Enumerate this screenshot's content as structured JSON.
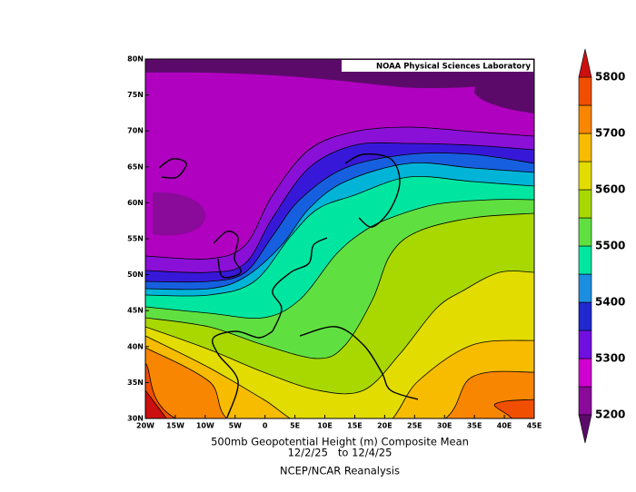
{
  "map": {
    "credit": "NOAA Physical Sciences Laboratory",
    "lat_labels": [
      "30N",
      "35N",
      "40N",
      "45N",
      "50N",
      "55N",
      "60N",
      "65N",
      "70N",
      "75N",
      "80N"
    ],
    "lon_labels": [
      "20W",
      "15W",
      "10W",
      "5W",
      "0",
      "5E",
      "10E",
      "15E",
      "20E",
      "25E",
      "30E",
      "35E",
      "40E",
      "45E"
    ],
    "colorbar": {
      "labels": [
        "5200",
        "5300",
        "5400",
        "5500",
        "5600",
        "5700",
        "5800"
      ]
    },
    "caption": {
      "title": "500mb Geopotential Height (m) Composite Mean",
      "dates": "12/2/25   to 12/4/25",
      "source": "NCEP/NCAR Reanalysis"
    }
  }
}
